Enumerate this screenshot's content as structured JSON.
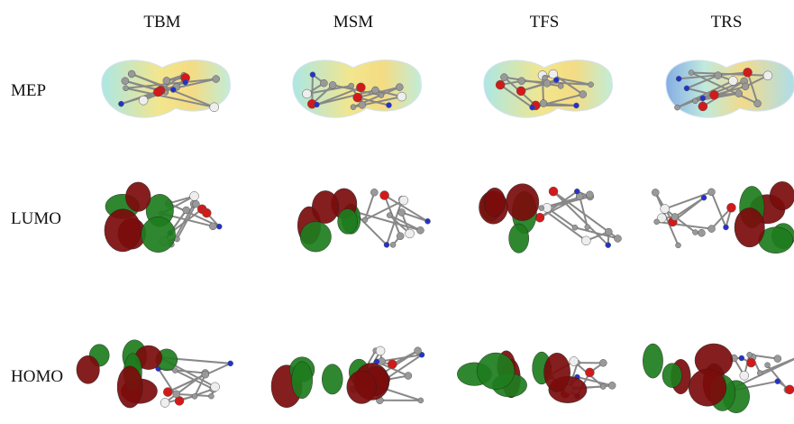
{
  "columns": [
    "TBM",
    "MSM",
    "TFS",
    "TRS"
  ],
  "rows": [
    "MEP",
    "LUMO",
    "HOMO"
  ]
}
